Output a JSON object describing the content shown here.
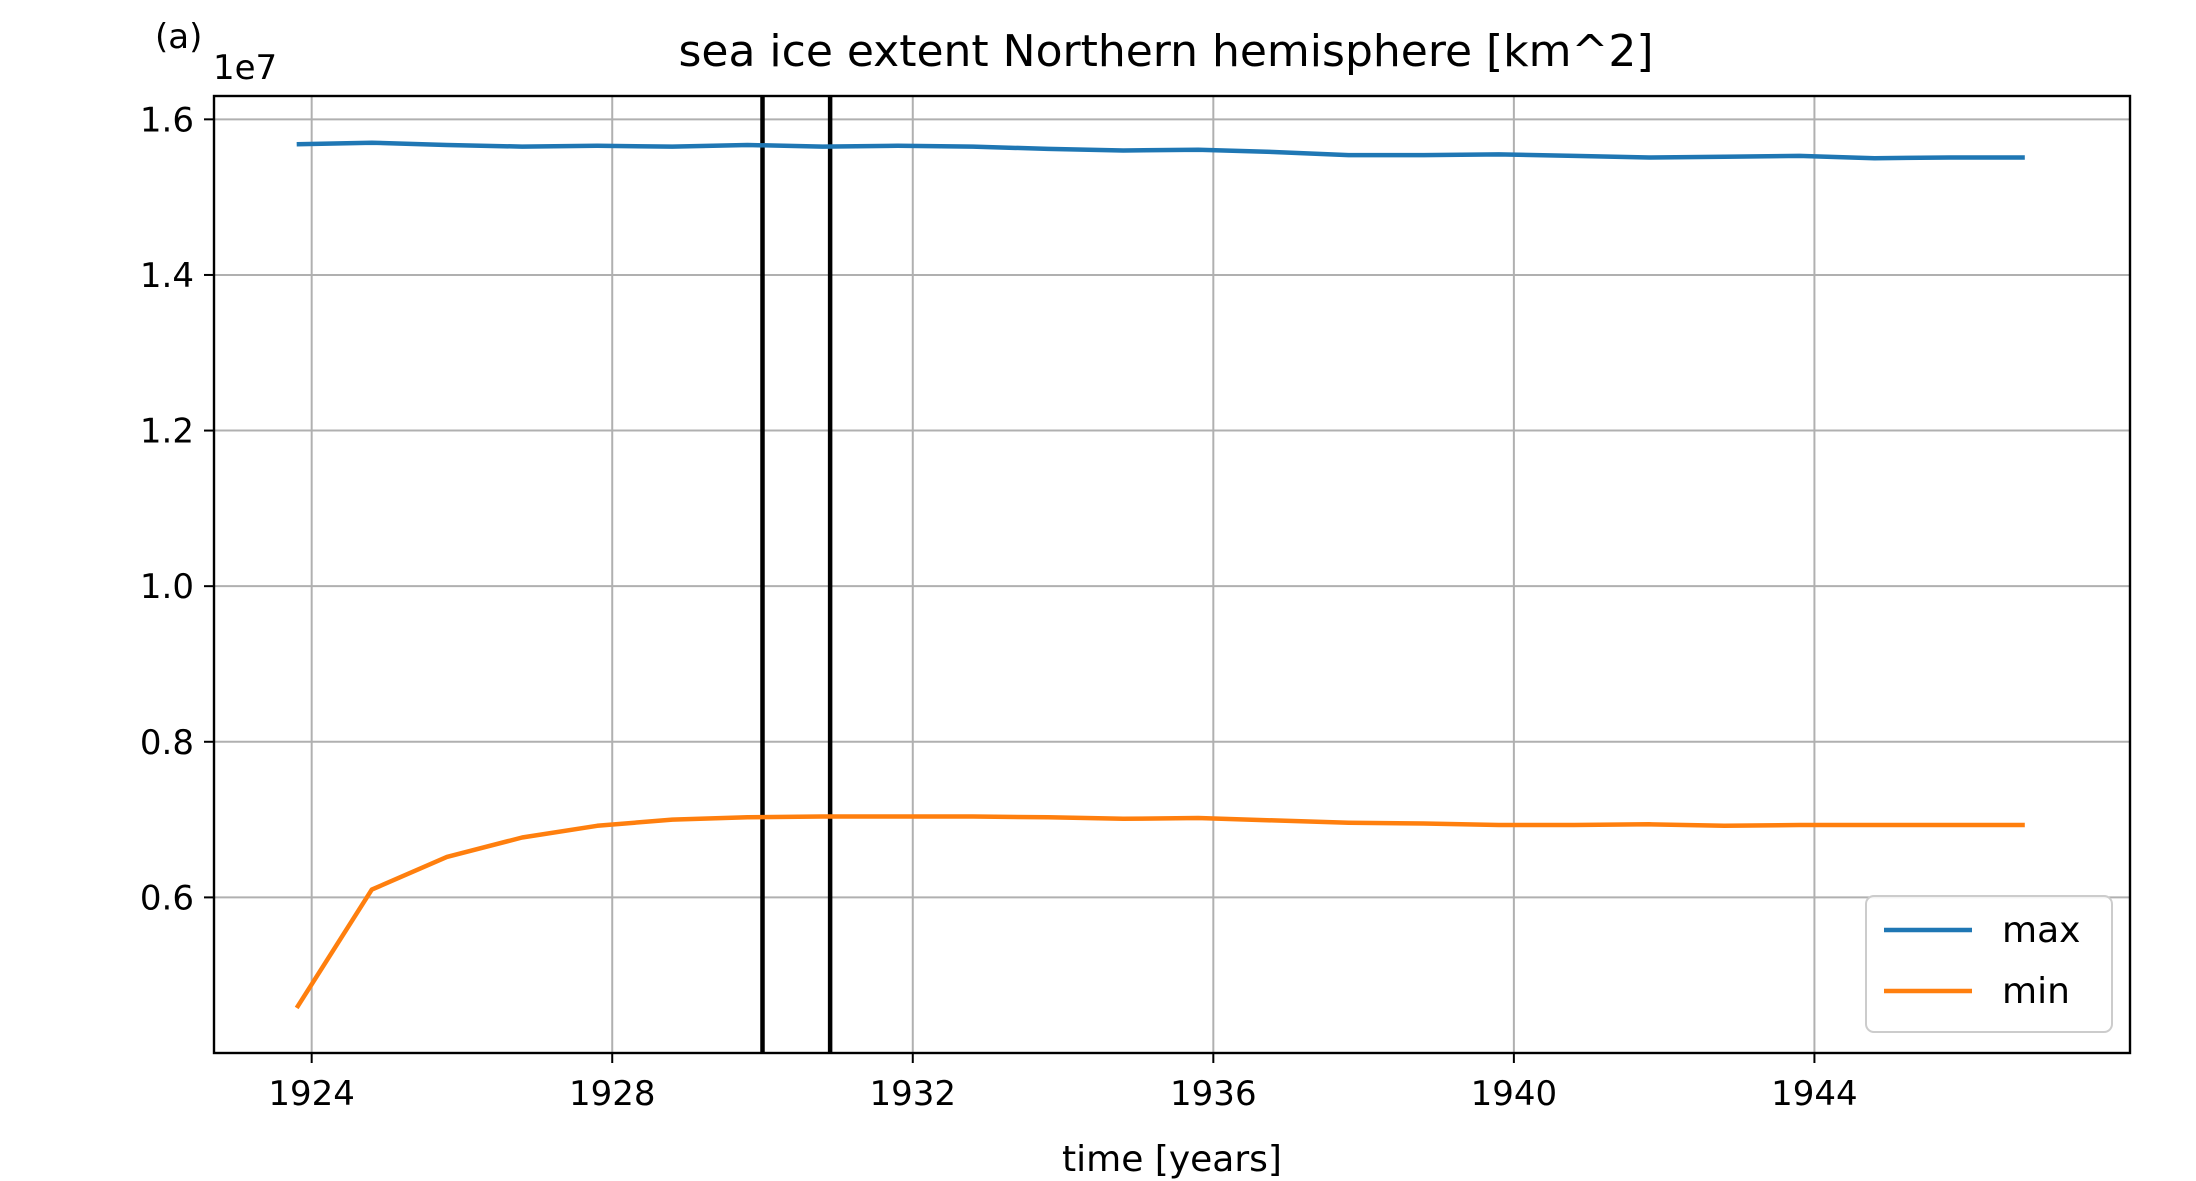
{
  "panel_label": "(a)",
  "chart_data": {
    "type": "line",
    "title": "sea ice extent Northern hemisphere [km^2]",
    "xlabel": "time [years]",
    "ylabel": "",
    "offset_text": "1e7",
    "xlim": [
      1922.7,
      1948.2
    ],
    "ylim": [
      4.0,
      16.3
    ],
    "x_ticks": [
      1924,
      1928,
      1932,
      1936,
      1940,
      1944
    ],
    "x_tick_labels": [
      "1924",
      "1928",
      "1932",
      "1936",
      "1940",
      "1944"
    ],
    "y_ticks": [
      6,
      8,
      10,
      12,
      14,
      16
    ],
    "y_tick_labels": [
      "0.6",
      "0.8",
      "1.0",
      "1.2",
      "1.4",
      "1.6"
    ],
    "grid": true,
    "legend_position": "lower right",
    "vlines": [
      1930.0,
      1930.9
    ],
    "x": [
      1923.8,
      1924.8,
      1925.8,
      1926.8,
      1927.8,
      1928.8,
      1929.8,
      1930.8,
      1931.8,
      1932.8,
      1933.8,
      1934.8,
      1935.8,
      1936.8,
      1937.8,
      1938.8,
      1939.8,
      1940.8,
      1941.8,
      1942.8,
      1943.8,
      1944.8,
      1945.8,
      1946.8
    ],
    "series": [
      {
        "name": "max",
        "color": "#1f77b4",
        "values": [
          15.68,
          15.7,
          15.67,
          15.65,
          15.66,
          15.65,
          15.67,
          15.65,
          15.66,
          15.65,
          15.62,
          15.6,
          15.61,
          15.58,
          15.54,
          15.54,
          15.55,
          15.53,
          15.51,
          15.52,
          15.53,
          15.5,
          15.51,
          15.51
        ]
      },
      {
        "name": "min",
        "color": "#ff7f0e",
        "values": [
          4.58,
          6.1,
          6.52,
          6.77,
          6.92,
          7.0,
          7.03,
          7.04,
          7.04,
          7.04,
          7.03,
          7.01,
          7.02,
          6.99,
          6.96,
          6.95,
          6.93,
          6.93,
          6.94,
          6.92,
          6.93,
          6.93,
          6.93,
          6.93
        ]
      }
    ]
  }
}
